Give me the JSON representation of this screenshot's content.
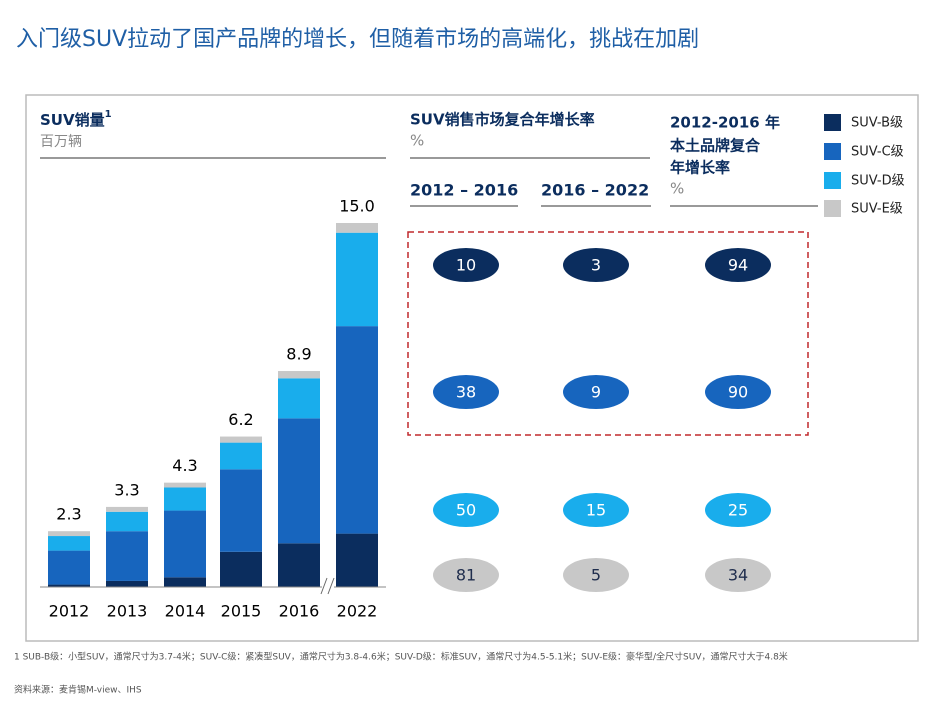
{
  "header": {
    "title": "入门级SUV拉动了国产品牌的增长，但随着市场的高端化，挑战在加剧"
  },
  "chart_data": {
    "type": "bar",
    "stacked": true,
    "title": "SUV销量",
    "title_note": "1",
    "subtitle": "百万辆",
    "categories": [
      "2012",
      "2013",
      "2014",
      "2015",
      "2016",
      "2022"
    ],
    "series": [
      {
        "name": "SUV-B级",
        "color": "#0b2d5e",
        "values": [
          0.1,
          0.25,
          0.4,
          1.45,
          1.8,
          2.2
        ]
      },
      {
        "name": "SUV-C级",
        "color": "#1765be",
        "values": [
          1.4,
          2.05,
          2.75,
          3.4,
          5.15,
          8.55
        ]
      },
      {
        "name": "SUV-D级",
        "color": "#19adec",
        "values": [
          0.6,
          0.8,
          0.95,
          1.1,
          1.65,
          3.85
        ]
      },
      {
        "name": "SUV-E级",
        "color": "#c8c8c8",
        "values": [
          0.2,
          0.2,
          0.2,
          0.25,
          0.3,
          0.4
        ]
      }
    ],
    "totals": [
      2.3,
      3.3,
      4.3,
      6.2,
      8.9,
      15.0
    ],
    "total_labels": [
      "2.3",
      "3.3",
      "4.3",
      "6.2",
      "8.9",
      "15.0"
    ],
    "ylim": [
      0,
      15
    ],
    "axis_break": true
  },
  "table": {
    "title": "SUV销售市场复合年增长率",
    "unit": "%",
    "columns": [
      "2012 – 2016",
      "2016 – 2022"
    ],
    "local": {
      "title_lines": [
        "2012-2016 年",
        "本土品牌复合",
        "年增长率"
      ],
      "unit": "%"
    },
    "rows": [
      [
        10,
        3,
        94
      ],
      [
        38,
        9,
        90
      ],
      [
        50,
        15,
        25
      ],
      [
        81,
        5,
        34
      ]
    ]
  },
  "footnote": "1 SUB-B级：小型SUV，通常尺寸为3.7-4米；SUV-C级：紧凑型SUV，通常尺寸为3.8-4.6米；SUV-D级：标准SUV，通常尺寸为4.5-5.1米；SUV-E级：豪华型/全尺寸SUV，通常尺寸大于4.8米",
  "source": "资料来源：麦肯锡M-view、IHS"
}
